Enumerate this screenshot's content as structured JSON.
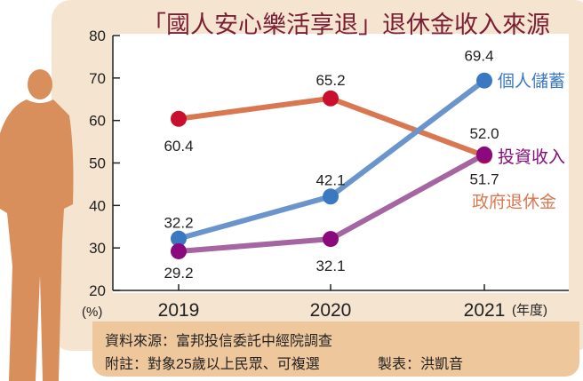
{
  "title": "「國人安心樂活享退」退休金收入來源",
  "source": "資料來源：富邦投信委託中經院調查",
  "note": "附註：對象25歲以上民眾、可複選",
  "maker": "製表：洪凱音",
  "chart_data": {
    "type": "line",
    "title": "「國人安心樂活享退」退休金收入來源",
    "ylabel": "(%)",
    "xlabel": "(年度)",
    "categories": [
      "2019",
      "2020",
      "2021"
    ],
    "ylim": [
      20,
      80
    ],
    "yticks": [
      20,
      30,
      40,
      50,
      60,
      70,
      80
    ],
    "grid": false,
    "legend": "right, inline at line ends",
    "series": [
      {
        "name": "個人儲蓄",
        "values": [
          32.2,
          42.1,
          69.4
        ],
        "line_color": "#6a95cc",
        "dot_color": "#3b78c2",
        "label_color": "#3b78c2"
      },
      {
        "name": "政府退休金",
        "values": [
          60.4,
          65.2,
          51.7
        ],
        "line_color": "#d97850",
        "dot_color": "#c8102e",
        "label_color": "#d97850"
      },
      {
        "name": "投資收入",
        "values": [
          29.2,
          32.1,
          52.0
        ],
        "line_color": "#a565a0",
        "dot_color": "#8a0a7e",
        "label_color": "#8a0a7e"
      }
    ]
  }
}
